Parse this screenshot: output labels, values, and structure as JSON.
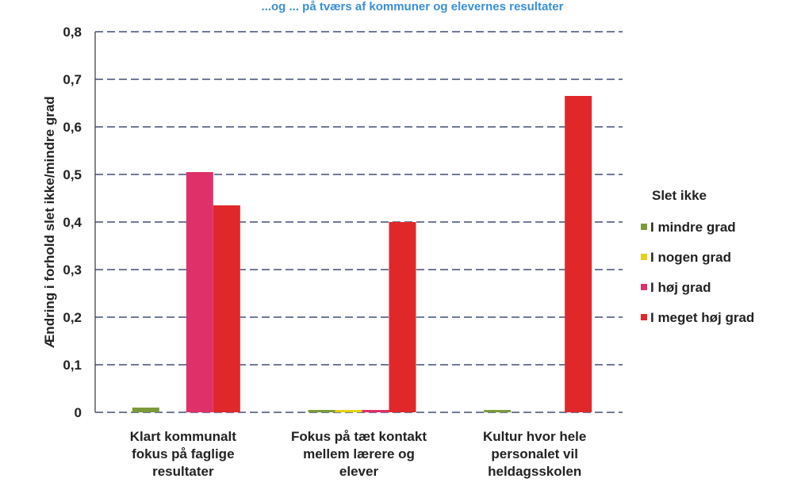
{
  "chart_data": {
    "type": "bar",
    "title": "...og ... på tværs af kommuner og elevernes resultater",
    "ylabel": "Ændring i forhold slet ikke/mindre grad",
    "xlabel": "",
    "ylim": [
      0,
      0.8
    ],
    "yticks": [
      "0",
      "0,1",
      "0,2",
      "0,3",
      "0,4",
      "0,5",
      "0,6",
      "0,7",
      "0,8"
    ],
    "grid": true,
    "legend_title": "Slet ikke",
    "legend_position": "right",
    "categories": [
      [
        "Klart kommunalt",
        "fokus på faglige",
        "resultater"
      ],
      [
        "Fokus på tæt kontakt",
        "mellem lærere og",
        "elever"
      ],
      [
        "Kultur hvor hele",
        "personalet vil",
        "heldagsskolen"
      ]
    ],
    "series": [
      {
        "name": "I mindre grad",
        "color": "#7c9a3a",
        "values": [
          0.01,
          0.005,
          0.005
        ]
      },
      {
        "name": "I nogen grad",
        "color": "#e6d21a",
        "values": [
          0,
          0.005,
          0
        ]
      },
      {
        "name": "I høj grad",
        "color": "#e0306a",
        "values": [
          0.505,
          0.005,
          0
        ]
      },
      {
        "name": "I meget høj grad",
        "color": "#e0282a",
        "values": [
          0.435,
          0.4,
          0.665
        ]
      }
    ]
  }
}
